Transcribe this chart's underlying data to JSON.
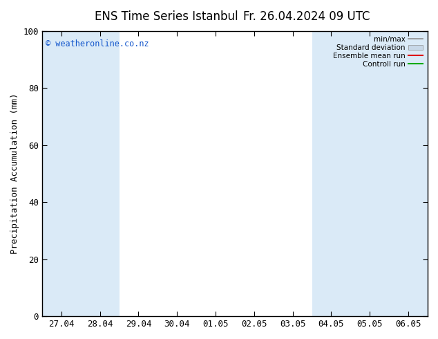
{
  "title1": "ENS Time Series Istanbul",
  "title2": "Fr. 26.04.2024 09 UTC",
  "ylabel": "Precipitation Accumulation (mm)",
  "watermark": "© weatheronline.co.nz",
  "ylim": [
    0,
    100
  ],
  "yticks": [
    0,
    20,
    40,
    60,
    80,
    100
  ],
  "xtick_labels": [
    "27.04",
    "28.04",
    "29.04",
    "30.04",
    "01.05",
    "02.05",
    "03.05",
    "04.05",
    "05.05",
    "06.05"
  ],
  "shaded_bands_idx": [
    0,
    1,
    7,
    8,
    9
  ],
  "band_color": "#daeaf7",
  "bg_color": "#ffffff",
  "plot_bg_color": "#ffffff",
  "legend_items": [
    {
      "label": "min/max",
      "color": "#a0a0a0",
      "style": "doubleline"
    },
    {
      "label": "Standard deviation",
      "color": "#c8d8e8",
      "style": "doubleline"
    },
    {
      "label": "Ensemble mean run",
      "color": "#dd0000",
      "style": "line"
    },
    {
      "label": "Controll run",
      "color": "#00aa00",
      "style": "line"
    }
  ],
  "watermark_color": "#1155cc",
  "title_fontsize": 12,
  "tick_fontsize": 9,
  "ylabel_fontsize": 9,
  "spine_color": "#000000",
  "tick_color": "#000000"
}
